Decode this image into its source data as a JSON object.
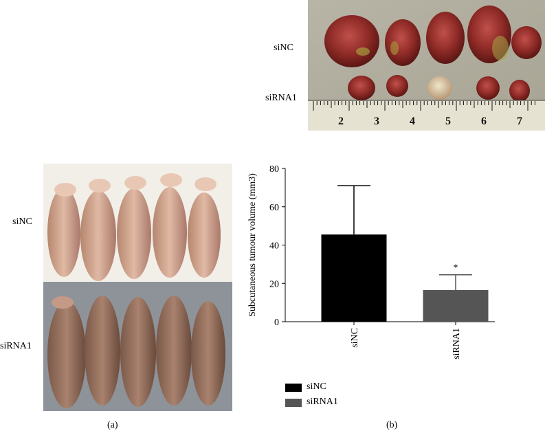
{
  "tumour_photo": {
    "row_labels": [
      "siNC",
      "siRNA1"
    ],
    "ruler_numbers": [
      "2",
      "3",
      "4",
      "5",
      "6",
      "7"
    ]
  },
  "mice_photo": {
    "row_labels": [
      "siNC",
      "siRNA1"
    ]
  },
  "panel_labels": {
    "a": "(a)",
    "b": "(b)"
  },
  "colors": {
    "siNC": "#000000",
    "siRNA1": "#555555"
  },
  "chart_data": {
    "type": "bar",
    "categories": [
      "siNC",
      "siRNA1"
    ],
    "values": [
      45.5,
      16.5
    ],
    "error": [
      25.5,
      8
    ],
    "annotations": [
      "",
      "*"
    ],
    "ylabel": "Subcutaneous tumour volume (mm3)",
    "xlabel": "",
    "ylim": [
      0,
      80
    ],
    "yticks": [
      0,
      20,
      40,
      60,
      80
    ],
    "grid": false,
    "legend": [
      "siNC",
      "siRNA1"
    ],
    "legend_position": "bottom-left"
  }
}
